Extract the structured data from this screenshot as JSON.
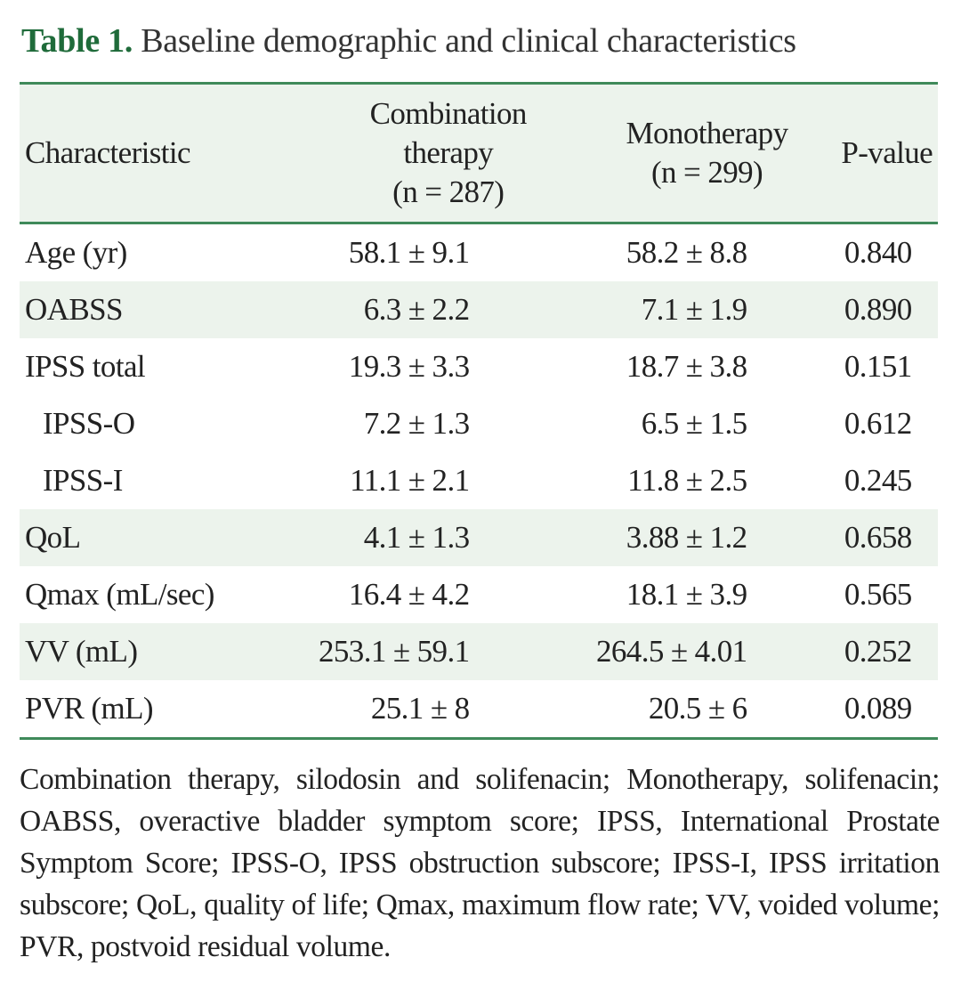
{
  "caption": {
    "label": "Table 1.",
    "title": "Baseline demographic and clinical characteristics"
  },
  "table": {
    "headers": {
      "characteristic": "Characteristic",
      "combination": [
        "Combination",
        "therapy",
        "(n = 287)"
      ],
      "monotherapy": [
        "Monotherapy",
        "(n = 299)"
      ],
      "pvalue": "P-value"
    },
    "rows": [
      {
        "label": "Age (yr)",
        "combination": "58.1 ± 9.1",
        "monotherapy": "58.2 ± 8.8",
        "p": "0.840",
        "shaded": false,
        "sub": false
      },
      {
        "label": "OABSS",
        "combination": "6.3 ± 2.2",
        "monotherapy": "7.1 ± 1.9",
        "p": "0.890",
        "shaded": true,
        "sub": false
      },
      {
        "label": "IPSS total",
        "combination": "19.3 ± 3.3",
        "monotherapy": "18.7 ± 3.8",
        "p": "0.151",
        "shaded": false,
        "sub": false
      },
      {
        "label": "IPSS-O",
        "combination": "7.2 ± 1.3",
        "monotherapy": "6.5 ± 1.5",
        "p": "0.612",
        "shaded": false,
        "sub": true
      },
      {
        "label": "IPSS-I",
        "combination": "11.1 ± 2.1",
        "monotherapy": "11.8 ± 2.5",
        "p": "0.245",
        "shaded": false,
        "sub": true
      },
      {
        "label": "QoL",
        "combination": "4.1 ± 1.3",
        "monotherapy": "3.88 ± 1.2",
        "p": "0.658",
        "shaded": true,
        "sub": false
      },
      {
        "label": "Qmax (mL/sec)",
        "combination": "16.4 ± 4.2",
        "monotherapy": "18.1 ± 3.9",
        "p": "0.565",
        "shaded": false,
        "sub": false
      },
      {
        "label": "VV (mL)",
        "combination": "253.1 ± 59.1",
        "monotherapy": "264.5 ± 4.01",
        "p": "0.252",
        "shaded": true,
        "sub": false
      },
      {
        "label": "PVR (mL)",
        "combination": "25.1 ± 8",
        "monotherapy": "20.5 ± 6",
        "p": "0.089",
        "shaded": false,
        "sub": false
      }
    ]
  },
  "footnote": "Combination therapy, silodosin and solifenacin; Monotherapy, solifenacin; OABSS, overactive bladder symptom score; IPSS, International Prostate Symptom Score; IPSS-O, IPSS obstruction subscore; IPSS-I, IPSS irritation subscore; QoL, quality of life; Qmax, maximum flow rate; VV, voided volume; PVR, postvoid residual volume.",
  "colors": {
    "accent_green": "#1f6b3a",
    "rule_green": "#3f8a5a",
    "shade": "#ecf3ec"
  }
}
